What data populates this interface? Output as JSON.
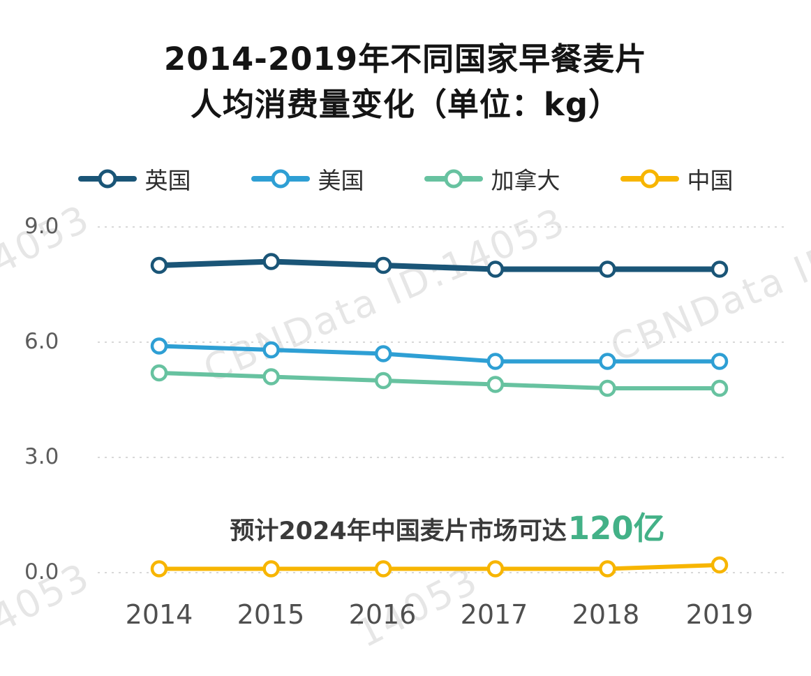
{
  "title": {
    "line1": "2014-2019年不同国家早餐麦片",
    "line2": "人均消费量变化（单位：kg）"
  },
  "chart_data": {
    "type": "line",
    "x": [
      "2014",
      "2015",
      "2016",
      "2017",
      "2018",
      "2019"
    ],
    "series": [
      {
        "name": "英国",
        "color": "#1a5577",
        "values": [
          8.0,
          8.1,
          8.0,
          7.9,
          7.9,
          7.9
        ]
      },
      {
        "name": "美国",
        "color": "#2e9fd4",
        "values": [
          5.9,
          5.8,
          5.7,
          5.5,
          5.5,
          5.5
        ]
      },
      {
        "name": "加拿大",
        "color": "#67c2a0",
        "values": [
          5.2,
          5.1,
          5.0,
          4.9,
          4.8,
          4.8
        ]
      },
      {
        "name": "中国",
        "color": "#f7b500",
        "values": [
          0.1,
          0.1,
          0.1,
          0.1,
          0.1,
          0.2
        ]
      }
    ],
    "yticks": [
      "9.0",
      "6.0",
      "3.0",
      "0.0"
    ],
    "ylim": [
      0,
      9
    ],
    "xlabel": "",
    "ylabel": "",
    "grid": "horizontal dashed",
    "legend_position": "top",
    "marker": "open-circle"
  },
  "annotation": {
    "prefix": "预计2024年中国麦片市场可达",
    "highlight": "120亿",
    "highlight_color": "#43b187"
  },
  "watermarks": [
    "4053",
    "CBNData ID:14053",
    "CBNData ID:",
    "4053",
    "14053"
  ]
}
